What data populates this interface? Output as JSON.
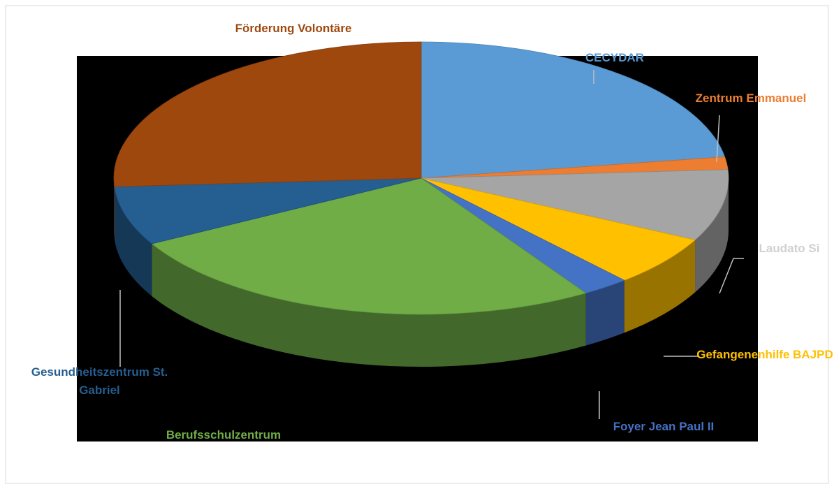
{
  "chart_data": {
    "type": "pie3d",
    "categories": [
      "CECYDAR",
      "Zentrum Emmanuel",
      "Laudato Si",
      "Gefangenenhilfe BAJPD",
      "Foyer Jean Paul II",
      "Berufsschulzentrum",
      "Gesundheitszentrum St. Gabriel",
      "Förderung Volontäre"
    ],
    "values": [
      22.5,
      1.5,
      8.5,
      6,
      2.5,
      26,
      7,
      26
    ],
    "colors": [
      "#5b9bd5",
      "#ed7d31",
      "#a5a5a5",
      "#ffc000",
      "#4472c4",
      "#70ad47",
      "#255e91",
      "#9e480e"
    ]
  }
}
